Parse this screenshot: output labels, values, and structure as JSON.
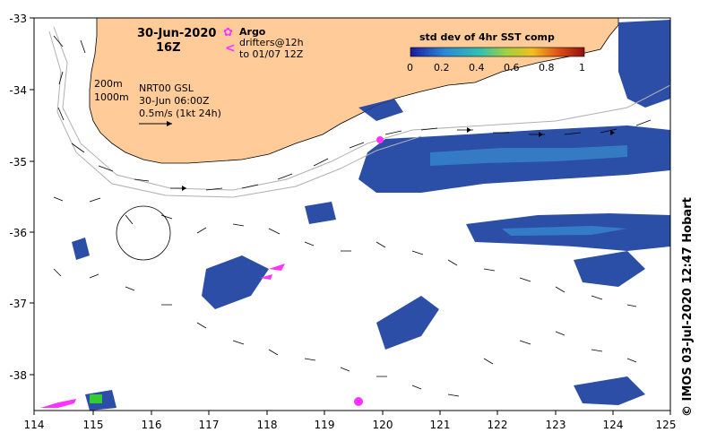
{
  "header": {
    "date": "30-Jun-2020",
    "hour": "16Z"
  },
  "legend": {
    "argo_label": "Argo",
    "drifters_label": "drifters@12h",
    "drifters_to": "to 01/07 12Z",
    "argo_symbol": "✿",
    "drifter_symbol": "<"
  },
  "colorbar": {
    "title": "std dev of 4hr SST comp",
    "ticks": [
      "0",
      "0.2",
      "0.4",
      "0.6",
      "0.8",
      "1"
    ]
  },
  "info": {
    "depth1": "200m",
    "depth2": "1000m",
    "product": "NRT00 GSL",
    "time": "30-Jun 06:00Z",
    "scale": "0.5m/s (1kt 24h)"
  },
  "axes": {
    "x_ticks": [
      "114",
      "115",
      "116",
      "117",
      "118",
      "119",
      "120",
      "121",
      "122",
      "123",
      "124",
      "125"
    ],
    "y_ticks": [
      "-33",
      "-34",
      "-35",
      "-36",
      "-37",
      "-38"
    ]
  },
  "credit": "© IMOS 03-Jul-2020 12:47 Hobart",
  "colors": {
    "land": "#FFCC99",
    "sst_high": "#1a3fa0",
    "sst_mid": "#2a6ad0",
    "argo": "#ff33ff",
    "contour": "#b0b0b0"
  }
}
